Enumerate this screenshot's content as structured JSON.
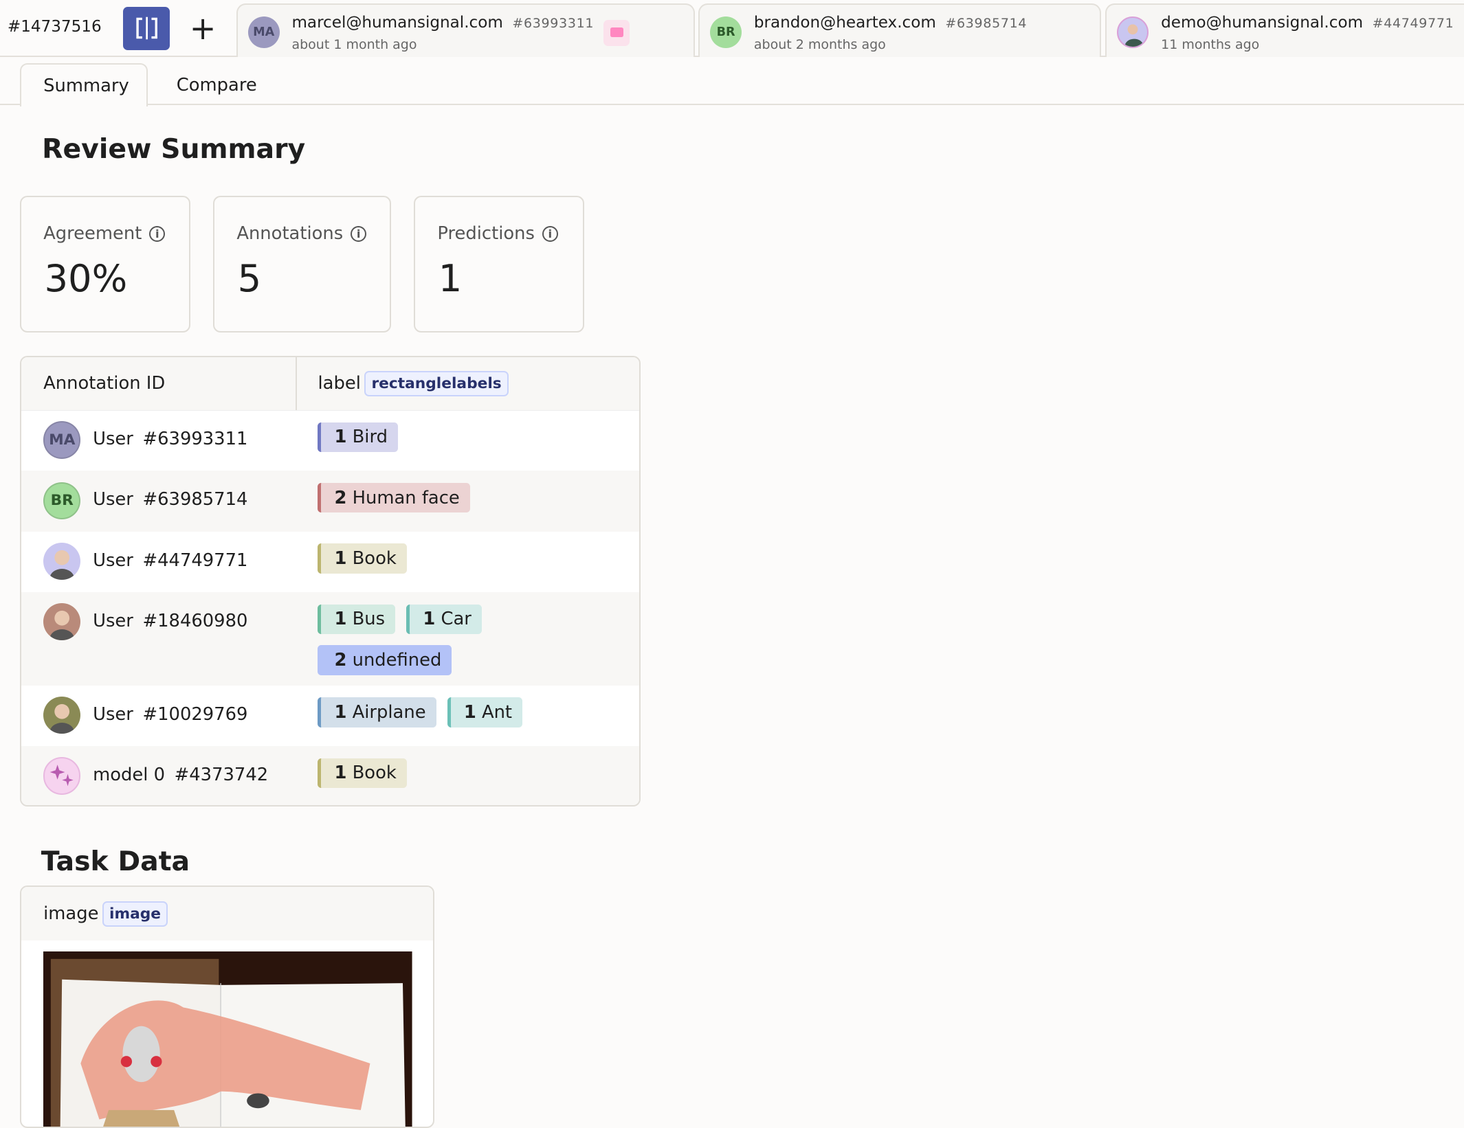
{
  "topbar": {
    "task_id": "#14737516",
    "split_icon": "split-view-icon",
    "accent": "#4a5aab",
    "add_icon": "plus-icon",
    "annotation_tabs": [
      {
        "initials": "MA",
        "avatar_color": "#9b99bf",
        "email": "marcel@humansignal.com",
        "id": "#63993311",
        "ago": "about 1 month ago",
        "has_comment": true
      },
      {
        "initials": "BR",
        "avatar_color": "#a3dd9c",
        "email": "brandon@heartex.com",
        "id": "#63985714",
        "ago": "about 2 months ago"
      },
      {
        "initials": "",
        "avatar_color": "#c9c6f0",
        "email": "demo@humansignal.com",
        "id": "#44749771",
        "ago": "11 months ago"
      }
    ]
  },
  "tabs": [
    {
      "label": "Summary",
      "active": true
    },
    {
      "label": "Compare"
    }
  ],
  "summary": {
    "title": "Review Summary",
    "cards": [
      {
        "label": "Agreement",
        "value": "30%"
      },
      {
        "label": "Annotations",
        "value": "5"
      },
      {
        "label": "Predictions",
        "value": "1"
      }
    ]
  },
  "table": {
    "col_id": "Annotation ID",
    "col_label": "label",
    "col_label_type": "rectanglelabels",
    "rows": [
      {
        "initials": "MA",
        "avatar_color": "#9b99bf",
        "name": "User",
        "id": "#63993311",
        "labels": [
          {
            "count": "1",
            "name": "Bird",
            "bg": "#d6d6ee",
            "stripe": "#7078c2"
          }
        ]
      },
      {
        "initials": "BR",
        "avatar_color": "#a3dd9c",
        "name": "User",
        "id": "#63985714",
        "labels": [
          {
            "count": "2",
            "name": "Human face",
            "bg": "#ecd3d3",
            "stripe": "#c07070"
          }
        ]
      },
      {
        "initials": "",
        "avatar_color": "#c9c6f0",
        "name": "User",
        "id": "#44749771",
        "labels": [
          {
            "count": "1",
            "name": "Book",
            "bg": "#ebe8d3",
            "stripe": "#bcb56f"
          }
        ]
      },
      {
        "initials": "",
        "avatar_color": "#b98a7a",
        "name": "User",
        "id": "#18460980",
        "labels": [
          {
            "count": "1",
            "name": "Bus",
            "bg": "#d4ebe2",
            "stripe": "#6ebd9e"
          },
          {
            "count": "1",
            "name": "Car",
            "bg": "#d3ebe8",
            "stripe": "#6bbdb3"
          },
          {
            "count": "2",
            "name": "undefined",
            "bg": "#b3c2f7",
            "stripe": "#b3c2f7"
          }
        ]
      },
      {
        "initials": "",
        "avatar_color": "#8a8a55",
        "name": "User",
        "id": "#10029769",
        "labels": [
          {
            "count": "1",
            "name": "Airplane",
            "bg": "#d3dfea",
            "stripe": "#6d9ac4"
          },
          {
            "count": "1",
            "name": "Ant",
            "bg": "#d3ebe9",
            "stripe": "#6bc0b7"
          }
        ]
      },
      {
        "initials": "",
        "avatar_color": "#f6d3ef",
        "name": "model 0",
        "id": "#4373742",
        "icon": "sparkle-icon",
        "labels": [
          {
            "count": "1",
            "name": "Book",
            "bg": "#ebe8d3",
            "stripe": "#bcb56f"
          }
        ]
      }
    ]
  },
  "task_data": {
    "title": "Task Data",
    "field": "image",
    "field_type": "image"
  }
}
